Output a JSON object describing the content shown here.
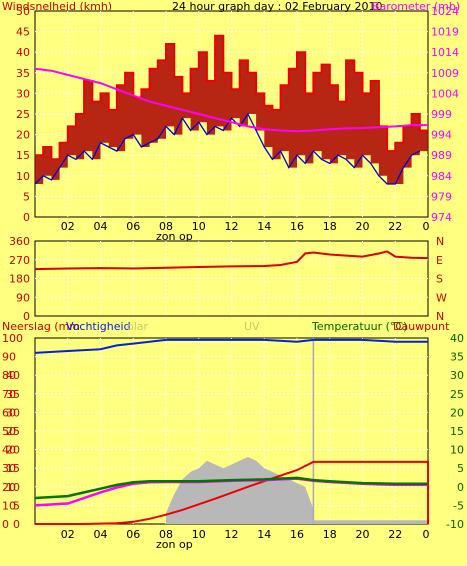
{
  "colors": {
    "background": "#ffff80",
    "plot_bg": "#ffff80",
    "grid": "#ffffff",
    "border": "#000000",
    "wind_avg": "#0000cc",
    "wind_gust": "#ee0000",
    "gust_dark": "#aa0000",
    "barometer": "#ff00ff",
    "direction": "#dd0000",
    "humidity": "#0022dd",
    "rain": "#ee0000",
    "solar": "#b8b8b8",
    "temperature": "#007700",
    "dewpoint": "#ff00ff",
    "uv": "#aaaaaa",
    "label_red": "#cc0000",
    "label_green": "#006600",
    "label_dark": "#000000"
  },
  "chart_data": [
    {
      "type": "line",
      "panel": "wind",
      "title": "24 hour graph day : 02 February 2010",
      "left_label": "Windsnelheid (kmh)",
      "right_label": "Barometer (mb)",
      "x_labels": [
        "02",
        "04",
        "06",
        "08",
        "10",
        "12",
        "14",
        "16",
        "18",
        "20",
        "22",
        "0"
      ],
      "x_sublabel": "zon op",
      "xlim": [
        0,
        24
      ],
      "ylim": [
        0,
        50
      ],
      "y_ticks": [
        "0",
        "5",
        "10",
        "15",
        "20",
        "25",
        "30",
        "35",
        "40",
        "45",
        "50"
      ],
      "y2lim": [
        974,
        1024
      ],
      "y2_ticks": [
        "974",
        "979",
        "984",
        "989",
        "994",
        "999",
        "1004",
        "1009",
        "1014",
        "1019",
        "1024"
      ],
      "grid": true,
      "series": [
        {
          "name": "Windsnelheid",
          "style": "avg",
          "x": [
            0,
            0.5,
            1,
            1.5,
            2,
            2.5,
            3,
            3.5,
            4,
            4.5,
            5,
            5.5,
            6,
            6.5,
            7,
            7.5,
            8,
            8.5,
            9,
            9.5,
            10,
            10.5,
            11,
            11.5,
            12,
            12.5,
            13,
            13.5,
            14,
            14.5,
            15,
            15.5,
            16,
            16.5,
            17,
            17.5,
            18,
            18.5,
            19,
            19.5,
            20,
            20.5,
            21,
            21.5,
            22,
            22.5,
            23,
            23.5
          ],
          "values": [
            8,
            10,
            9,
            12,
            15,
            14,
            16,
            14,
            18,
            17,
            16,
            19,
            20,
            17,
            18,
            19,
            22,
            20,
            24,
            21,
            23,
            20,
            22,
            21,
            24,
            22,
            25,
            21,
            17,
            14,
            16,
            12,
            15,
            13,
            16,
            14,
            13,
            15,
            14,
            12,
            15,
            13,
            10,
            8,
            8,
            12,
            15,
            16
          ]
        },
        {
          "name": "Windstoten",
          "style": "gust",
          "x": [
            0,
            0.5,
            1,
            1.5,
            2,
            2.5,
            3,
            3.5,
            4,
            4.5,
            5,
            5.5,
            6,
            6.5,
            7,
            7.5,
            8,
            8.5,
            9,
            9.5,
            10,
            10.5,
            11,
            11.5,
            12,
            12.5,
            13,
            13.5,
            14,
            14.5,
            15,
            15.5,
            16,
            16.5,
            17,
            17.5,
            18,
            18.5,
            19,
            19.5,
            20,
            20.5,
            21,
            21.5,
            22,
            22.5,
            23,
            23.5
          ],
          "values": [
            15,
            17,
            14,
            18,
            22,
            25,
            33,
            28,
            30,
            26,
            32,
            35,
            29,
            31,
            36,
            38,
            42,
            34,
            30,
            36,
            40,
            33,
            44,
            35,
            31,
            38,
            35,
            30,
            27,
            26,
            32,
            36,
            40,
            30,
            35,
            37,
            32,
            28,
            38,
            35,
            30,
            33,
            22,
            16,
            18,
            22,
            25,
            21
          ]
        },
        {
          "name": "Barometer",
          "axis": "right",
          "x": [
            0,
            1,
            2,
            3,
            4,
            5,
            6,
            7,
            8,
            9,
            10,
            11,
            12,
            13,
            14,
            15,
            16,
            17,
            18,
            19,
            20,
            21,
            22,
            23,
            24
          ],
          "values": [
            1010,
            1009.5,
            1008.5,
            1007.5,
            1006.5,
            1005,
            1003.5,
            1002,
            1001,
            1000,
            999,
            998,
            997,
            996,
            995.3,
            995,
            994.8,
            995,
            995.3,
            995.5,
            995.6,
            995.8,
            996,
            996.3,
            996.3
          ]
        }
      ]
    },
    {
      "type": "line",
      "panel": "direction",
      "xlim": [
        0,
        24
      ],
      "ylim": [
        0,
        360
      ],
      "y_ticks": [
        "0",
        "90",
        "180",
        "270",
        "360"
      ],
      "right_labels": [
        "N",
        "W",
        "S",
        "E",
        "N"
      ],
      "grid": true,
      "series": [
        {
          "name": "Windrichting",
          "x": [
            0,
            2,
            4,
            6,
            8,
            10,
            12,
            14,
            15,
            16,
            16.5,
            17,
            18,
            19,
            20,
            21,
            21.5,
            22,
            23,
            24
          ],
          "values": [
            225,
            228,
            230,
            228,
            232,
            235,
            238,
            240,
            245,
            260,
            300,
            305,
            295,
            290,
            285,
            300,
            310,
            285,
            280,
            278
          ]
        }
      ]
    },
    {
      "type": "line",
      "panel": "rain-humidity-temperature",
      "left_labels": [
        "Neerslag (mm",
        "Vochtigheid",
        "olar"
      ],
      "center_label": "UV",
      "right_labels": [
        "Temperatuur (°C)",
        "Dauwpunt"
      ],
      "x_labels": [
        "02",
        "04",
        "06",
        "08",
        "10",
        "12",
        "14",
        "16",
        "18",
        "20",
        "22",
        "0"
      ],
      "x_sublabel": "zon op",
      "xlim": [
        0,
        24
      ],
      "ylim": [
        0,
        40
      ],
      "y_ticks": [
        "0",
        "5",
        "10",
        "15",
        "20",
        "25",
        "30",
        "35",
        "40"
      ],
      "humidity_ticks": [
        "0",
        "10",
        "20",
        "30",
        "40",
        "50",
        "60",
        "70",
        "80",
        "90",
        "100"
      ],
      "y2lim": [
        -10,
        40
      ],
      "y2_ticks": [
        "-10",
        "-5",
        "0",
        "5",
        "10",
        "15",
        "20",
        "25",
        "30",
        "35",
        "40"
      ],
      "grid": true,
      "series": [
        {
          "name": "Vochtigheid",
          "style": "humidity",
          "x": [
            0,
            2,
            4,
            5,
            6,
            7,
            8,
            10,
            12,
            14,
            16,
            17,
            18,
            20,
            22,
            23,
            24
          ],
          "values": [
            92,
            93,
            94,
            96,
            97,
            98,
            99,
            99,
            99,
            99,
            98,
            99,
            99,
            99,
            98,
            98,
            98
          ]
        },
        {
          "name": "Neerslag",
          "style": "rain",
          "x": [
            0,
            3,
            5,
            6,
            7,
            8,
            9,
            10,
            11,
            12,
            13,
            14,
            15,
            16,
            17,
            22,
            24,
            24
          ],
          "values": [
            0,
            0,
            0.2,
            0.6,
            1.4,
            2.5,
            3.8,
            5.3,
            6.8,
            8.4,
            10,
            11.5,
            13,
            14.5,
            16.7,
            16.7,
            16.7,
            0
          ]
        },
        {
          "name": "Zonne-energie",
          "style": "solar",
          "x": [
            8,
            8.5,
            9,
            9.5,
            10,
            10.5,
            11,
            11.5,
            12,
            12.5,
            13,
            13.5,
            14,
            14.5,
            15,
            15.5,
            16,
            16.5,
            17
          ],
          "values": [
            3,
            8,
            12,
            14,
            15,
            17,
            16,
            15,
            16,
            17,
            18,
            17,
            15,
            14,
            13,
            12,
            11,
            10,
            4
          ]
        },
        {
          "name": "Temperatuur",
          "axis": "right",
          "style": "temperature",
          "x": [
            0,
            2,
            3,
            4,
            5,
            6,
            7,
            8,
            10,
            12,
            14,
            16,
            17,
            18,
            20,
            22,
            24
          ],
          "values": [
            -3,
            -2.5,
            -1.5,
            -0.5,
            0.5,
            1.2,
            1.5,
            1.5,
            1.5,
            1.8,
            2,
            2.4,
            1.8,
            1.5,
            1,
            0.8,
            0.8
          ]
        },
        {
          "name": "Dauwpunt",
          "axis": "right",
          "style": "dewpoint",
          "x": [
            0,
            2,
            3,
            4,
            5,
            6,
            7,
            8,
            10,
            12,
            14,
            16,
            17,
            18,
            20,
            22,
            24
          ],
          "values": [
            -5,
            -4.5,
            -3,
            -1.5,
            -0.2,
            0.8,
            1.2,
            1.3,
            1.3,
            1.6,
            1.8,
            2.2,
            1.6,
            1.3,
            0.8,
            0.5,
            0.5
          ]
        }
      ]
    }
  ]
}
